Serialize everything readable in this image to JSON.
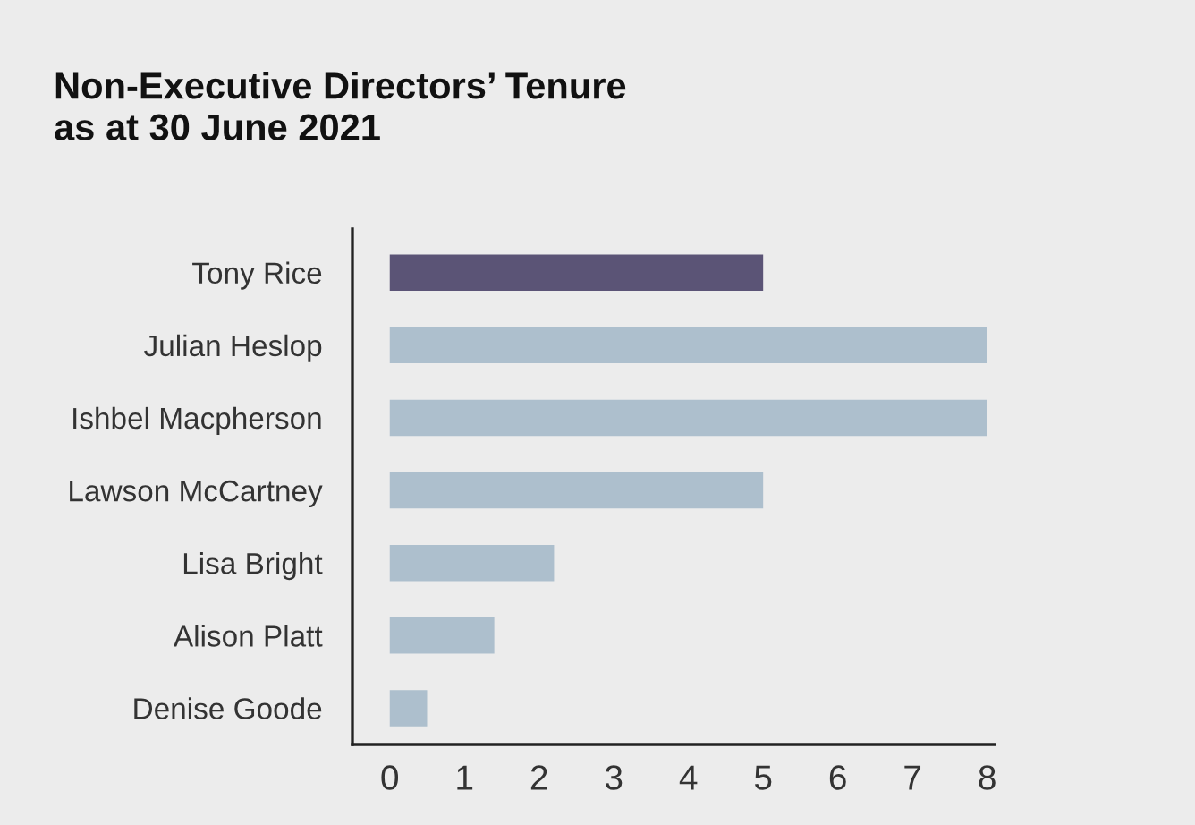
{
  "chart_data": {
    "type": "bar",
    "orientation": "horizontal",
    "title": "Non-Executive Directors’ Tenure\nas at 30 June 2021",
    "categories": [
      "Tony Rice",
      "Julian Heslop",
      "Ishbel Macpherson",
      "Lawson McCartney",
      "Lisa Bright",
      "Alison Platt",
      "Denise Goode"
    ],
    "values": [
      5,
      8,
      8,
      5,
      2.2,
      1.4,
      0.5
    ],
    "colors": [
      "#5b5476",
      "#adbfcd",
      "#adbfcd",
      "#adbfcd",
      "#adbfcd",
      "#adbfcd",
      "#adbfcd"
    ],
    "xlim": [
      -0.5,
      8.1
    ],
    "xticks": [
      0,
      1,
      2,
      3,
      4,
      5,
      6,
      7,
      8
    ],
    "grid": false
  }
}
